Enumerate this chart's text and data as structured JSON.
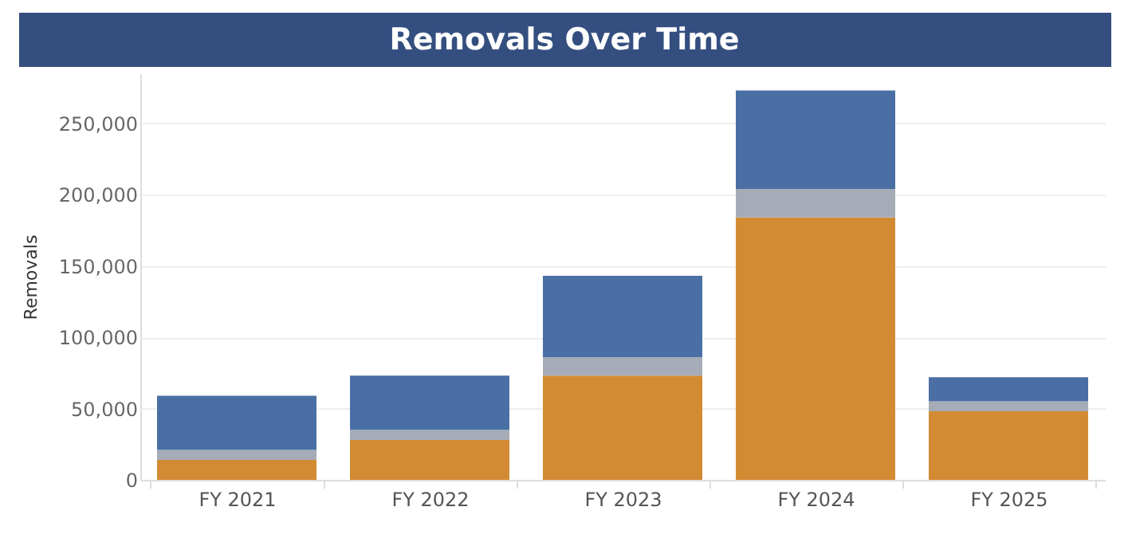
{
  "chart_data": {
    "type": "bar",
    "title": "Removals Over Time",
    "ylabel": "Removals",
    "categories": [
      "FY 2021",
      "FY 2022",
      "FY 2023",
      "FY 2024",
      "FY 2025"
    ],
    "stacked": true,
    "series": [
      {
        "color": "#d38b33",
        "values": [
          14000,
          28000,
          73000,
          184000,
          48000
        ]
      },
      {
        "color": "#a5acb7",
        "values": [
          7000,
          7000,
          13000,
          20000,
          7000
        ]
      },
      {
        "color": "#4a6fa5",
        "values": [
          38000,
          38000,
          57000,
          69000,
          17000
        ]
      }
    ],
    "ylim": [
      0,
      285000
    ],
    "yticks": [
      0,
      {
        "value": 50000,
        "label": "50,000"
      },
      {
        "value": 100000,
        "label": "100,000"
      },
      {
        "value": 150000,
        "label": "150,000"
      },
      {
        "value": 200000,
        "label": "200,000"
      },
      {
        "value": 250000,
        "label": "250,000"
      }
    ],
    "grid": "y",
    "legend": false
  }
}
